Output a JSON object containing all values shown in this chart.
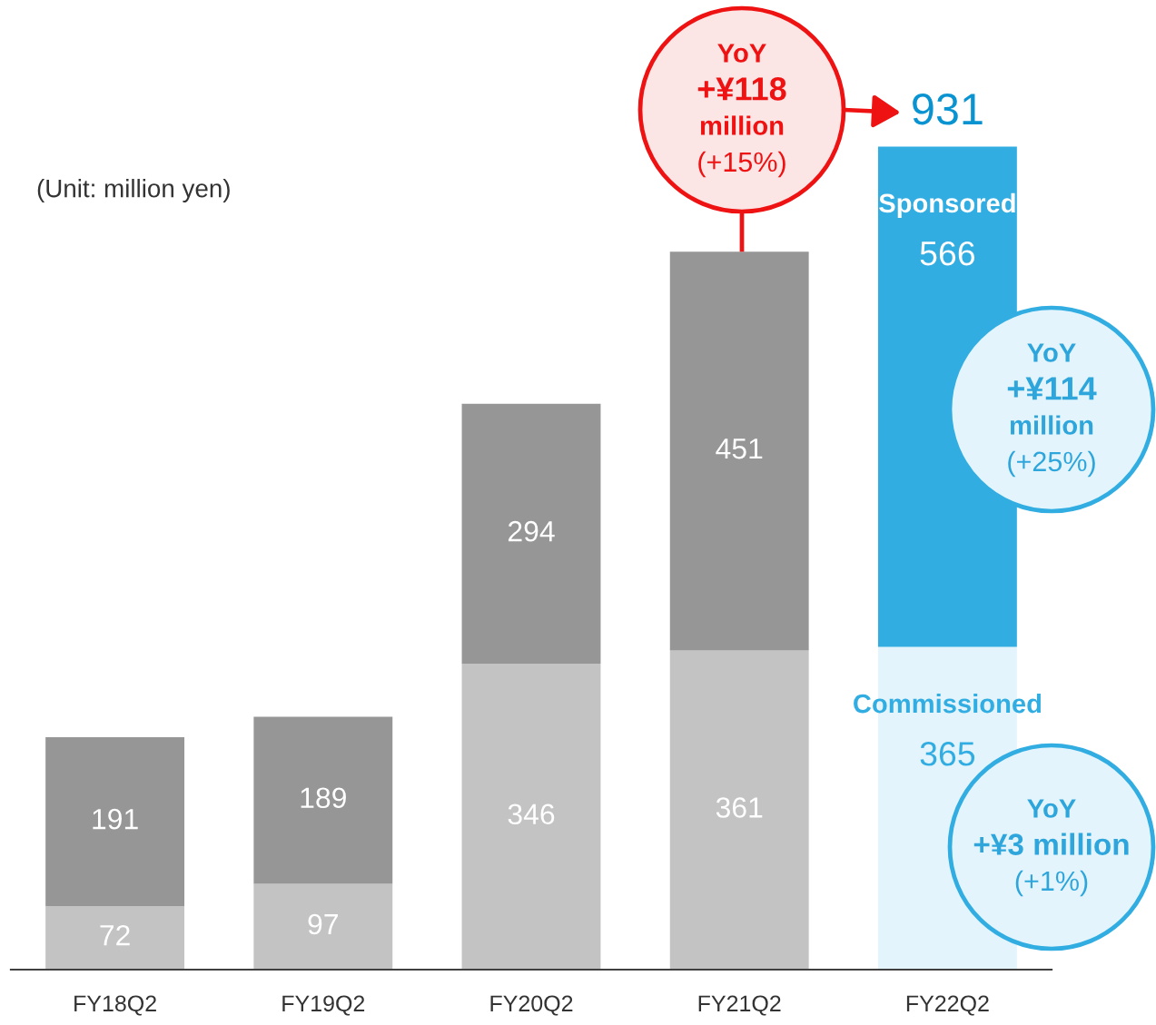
{
  "chart_data": {
    "type": "bar",
    "stacked": true,
    "data_labels": true,
    "tick_labels": "x",
    "categories": [
      "FY18Q2",
      "FY19Q2",
      "FY20Q2",
      "FY21Q2",
      "FY22Q2"
    ],
    "series": [
      {
        "name": "Commissioned",
        "colors": [
          "#c3c3c3",
          "#c3c3c3",
          "#c3c3c3",
          "#c3c3c3",
          "#e4f4fc"
        ],
        "values": [
          72,
          97,
          346,
          361,
          365
        ]
      },
      {
        "name": "Sponsored",
        "colors": [
          "#969696",
          "#969696",
          "#969696",
          "#969696",
          "#31ade2"
        ],
        "values": [
          191,
          189,
          294,
          451,
          566
        ]
      }
    ],
    "totals": [
      null,
      null,
      null,
      null,
      "931"
    ],
    "annotations": [
      "(Unit: million yen)",
      "YoY\n+¥118\nmillion\n(+15%)",
      "YoY\n+¥114\nmillion\n(+25%)",
      "YoY\n+¥3 million\n(+1%)"
    ]
  }
}
